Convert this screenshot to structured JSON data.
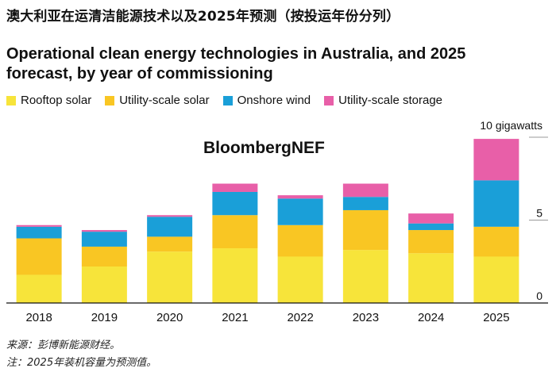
{
  "cn_title": "澳大利亚在运清洁能源技术以及2025年预测（按投运年份分列）",
  "chart_data": {
    "type": "stacked-bar",
    "title": "Operational clean energy technologies in Australia, and 2025 forecast, by year of commissioning",
    "categories": [
      "2018",
      "2019",
      "2020",
      "2021",
      "2022",
      "2023",
      "2024",
      "2025"
    ],
    "series": [
      {
        "name": "Rooftop solar",
        "color": "#f7e43a",
        "values": [
          1.7,
          2.2,
          3.1,
          3.3,
          2.8,
          3.2,
          3.0,
          2.8
        ]
      },
      {
        "name": "Utility-scale solar",
        "color": "#f9c623",
        "values": [
          2.2,
          1.2,
          0.9,
          2.0,
          1.9,
          2.4,
          1.4,
          1.8
        ]
      },
      {
        "name": "Onshore wind",
        "color": "#1a9fd8",
        "values": [
          0.7,
          0.9,
          1.2,
          1.4,
          1.6,
          0.8,
          0.4,
          2.8
        ]
      },
      {
        "name": "Utility-scale storage",
        "color": "#e85fa8",
        "values": [
          0.1,
          0.1,
          0.1,
          0.5,
          0.2,
          0.8,
          0.6,
          2.5
        ]
      }
    ],
    "ylim": [
      0,
      10
    ],
    "yticks": [
      0,
      5
    ],
    "ytick_top_label": "10 gigawatts",
    "ylabel": "gigawatts",
    "watermark": "BloombergNEF"
  },
  "notes": {
    "source": "来源：彭博新能源财经。",
    "forecast": "注：2025年装机容量为预测值。"
  }
}
